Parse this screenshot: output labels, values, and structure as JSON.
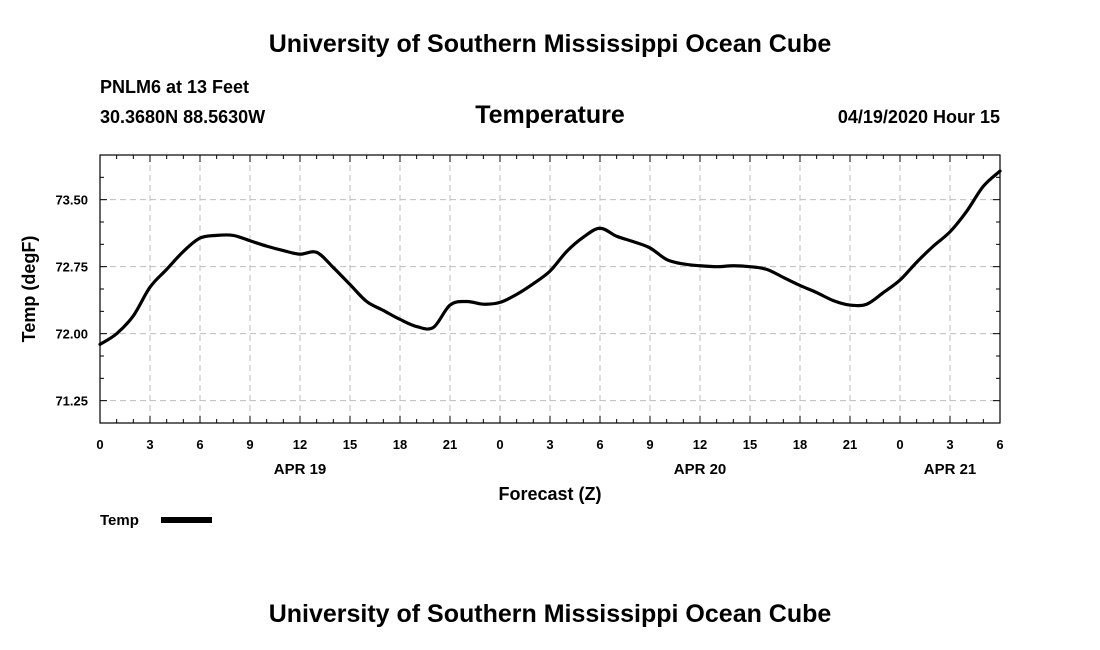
{
  "header": {
    "title": "University of Southern Mississippi Ocean Cube",
    "station": "PNLM6 at 13 Feet",
    "coords": "30.3680N 88.5630W",
    "timestamp": "04/19/2020 Hour 15"
  },
  "footer": {
    "title": "University of Southern Mississippi Ocean Cube"
  },
  "chart_data": {
    "type": "line",
    "title": "Temperature",
    "xlabel": "Forecast (Z)",
    "ylabel": "Temp (degF)",
    "xlim": [
      0,
      54
    ],
    "ylim": [
      71.0,
      74.0
    ],
    "grid": true,
    "legend_position": "bottom-left",
    "x_ticks": [
      0,
      3,
      6,
      9,
      12,
      15,
      18,
      21,
      24,
      27,
      30,
      33,
      36,
      39,
      42,
      45,
      48,
      51,
      54
    ],
    "x_tick_labels": [
      "0",
      "3",
      "6",
      "9",
      "12",
      "15",
      "18",
      "21",
      "0",
      "3",
      "6",
      "9",
      "12",
      "15",
      "18",
      "21",
      "0",
      "3",
      "6"
    ],
    "y_ticks": [
      71.25,
      72.0,
      72.75,
      73.5
    ],
    "y_tick_labels": [
      "71.25",
      "72.00",
      "72.75",
      "73.50"
    ],
    "day_labels": [
      {
        "x": 12,
        "label": "APR 19"
      },
      {
        "x": 36,
        "label": "APR 20"
      },
      {
        "x": 51,
        "label": "APR 21"
      }
    ],
    "series": [
      {
        "name": "Temp",
        "color": "#000000",
        "x": [
          0,
          1,
          2,
          3,
          4,
          5,
          6,
          7,
          8,
          9,
          10,
          11,
          12,
          13,
          14,
          15,
          16,
          17,
          18,
          19,
          20,
          21,
          22,
          23,
          24,
          25,
          26,
          27,
          28,
          29,
          30,
          31,
          32,
          33,
          34,
          35,
          36,
          37,
          38,
          39,
          40,
          41,
          42,
          43,
          44,
          45,
          46,
          47,
          48,
          49,
          50,
          51,
          52,
          53,
          54
        ],
        "values": [
          71.88,
          72.0,
          72.2,
          72.52,
          72.72,
          72.92,
          73.07,
          73.1,
          73.1,
          73.04,
          72.98,
          72.93,
          72.89,
          72.91,
          72.74,
          72.55,
          72.36,
          72.26,
          72.16,
          72.08,
          72.07,
          72.32,
          72.36,
          72.33,
          72.35,
          72.44,
          72.56,
          72.7,
          72.92,
          73.08,
          73.18,
          73.09,
          73.03,
          72.96,
          72.83,
          72.78,
          72.76,
          72.75,
          72.76,
          72.75,
          72.72,
          72.63,
          72.54,
          72.46,
          72.37,
          72.32,
          72.33,
          72.46,
          72.6,
          72.8,
          72.98,
          73.14,
          73.37,
          73.65,
          73.82
        ]
      }
    ]
  }
}
